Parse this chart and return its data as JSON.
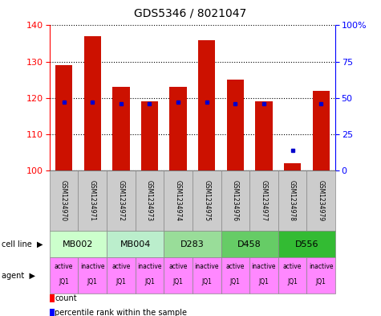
{
  "title": "GDS5346 / 8021047",
  "samples": [
    "GSM1234970",
    "GSM1234971",
    "GSM1234972",
    "GSM1234973",
    "GSM1234974",
    "GSM1234975",
    "GSM1234976",
    "GSM1234977",
    "GSM1234978",
    "GSM1234979"
  ],
  "counts": [
    129,
    137,
    123,
    119,
    123,
    136,
    125,
    119,
    102,
    122
  ],
  "percentile_ranks": [
    47,
    47,
    46,
    46,
    47,
    47,
    46,
    46,
    14,
    46
  ],
  "cell_lines": [
    {
      "label": "MB002",
      "cols": [
        0,
        1
      ],
      "color": "#ccffcc"
    },
    {
      "label": "MB004",
      "cols": [
        2,
        3
      ],
      "color": "#bbeecc"
    },
    {
      "label": "D283",
      "cols": [
        4,
        5
      ],
      "color": "#99dd99"
    },
    {
      "label": "D458",
      "cols": [
        6,
        7
      ],
      "color": "#66cc66"
    },
    {
      "label": "D556",
      "cols": [
        8,
        9
      ],
      "color": "#33bb33"
    }
  ],
  "agents": [
    [
      "active",
      "JQ1"
    ],
    [
      "inactive",
      "JQ1"
    ],
    [
      "active",
      "JQ1"
    ],
    [
      "inactive",
      "JQ1"
    ],
    [
      "active",
      "JQ1"
    ],
    [
      "inactive",
      "JQ1"
    ],
    [
      "active",
      "JQ1"
    ],
    [
      "inactive",
      "JQ1"
    ],
    [
      "active",
      "JQ1"
    ],
    [
      "inactive",
      "JQ1"
    ]
  ],
  "agent_color": "#ff88ff",
  "ylim_left": [
    100,
    140
  ],
  "ylim_right": [
    0,
    100
  ],
  "yticks_left": [
    100,
    110,
    120,
    130,
    140
  ],
  "yticks_right": [
    0,
    25,
    50,
    75,
    100
  ],
  "bar_color": "#cc1100",
  "dot_color": "#0000cc",
  "bar_width": 0.6,
  "sample_box_color": "#cccccc",
  "cell_line_colors": [
    "#ccffcc",
    "#bbeecc",
    "#99dd99",
    "#66cc66",
    "#33bb33"
  ],
  "fig_width": 4.75,
  "fig_height": 3.93,
  "dpi": 100
}
